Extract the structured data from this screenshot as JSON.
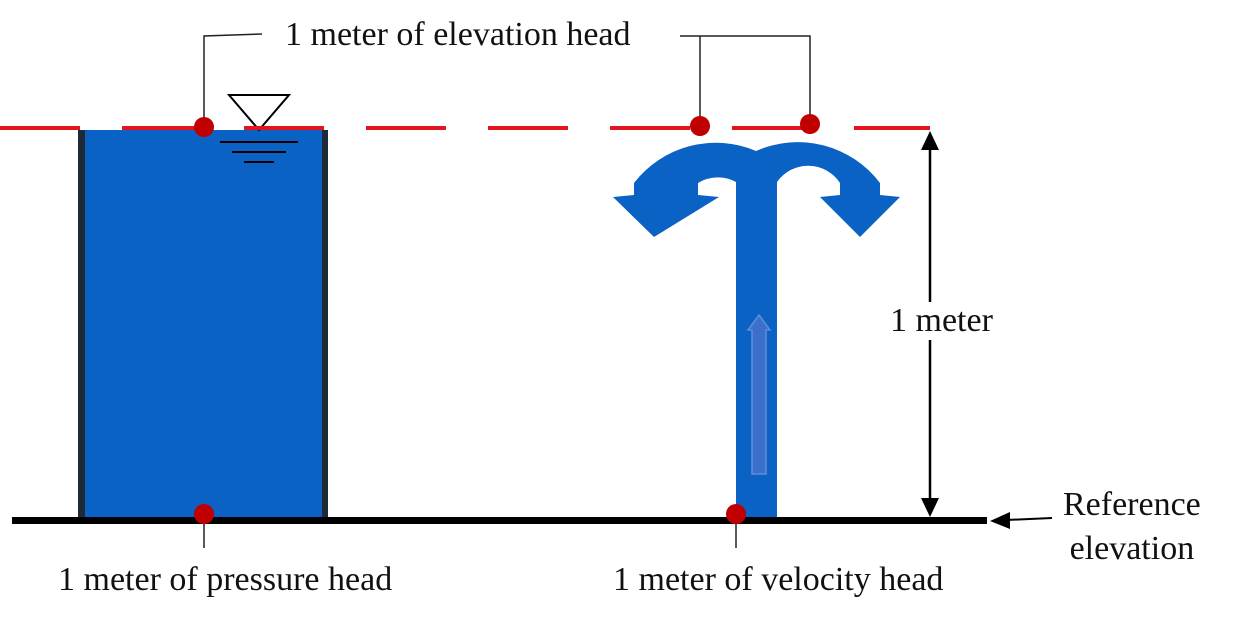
{
  "labels": {
    "elevation_head": "1 meter of elevation head",
    "one_meter": "1 meter",
    "pressure_head": "1 meter of pressure head",
    "velocity_head": "1 meter of velocity head",
    "reference_line1": "Reference",
    "reference_line2": "elevation"
  },
  "colors": {
    "water": "#0a63c4",
    "tank_wall": "#1f2a38",
    "datum_line": "#e3141b",
    "point_marker": "#c00000",
    "ground": "#000000",
    "leader": "#222222"
  },
  "icons": {
    "water_surface": "inverted-triangle-water-level-symbol",
    "flow_arrow": "upward-arrow"
  }
}
